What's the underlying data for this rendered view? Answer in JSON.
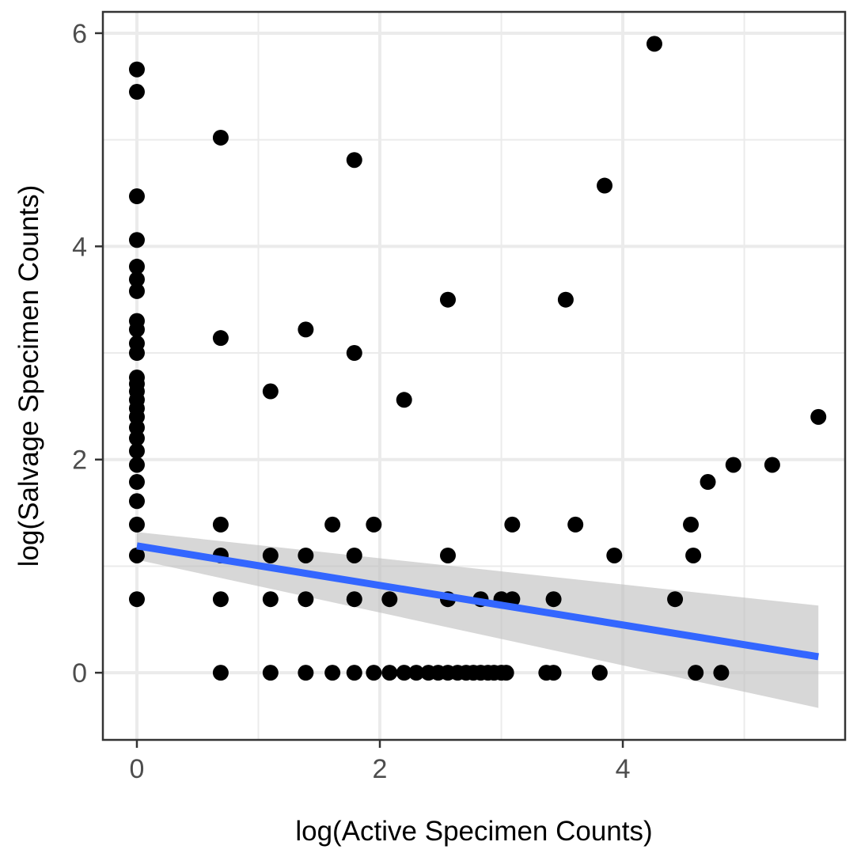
{
  "chart_data": {
    "type": "scatter",
    "title": "",
    "xlabel": "log(Active Specimen Counts)",
    "ylabel": "log(Salvage Specimen Counts)",
    "xlim": [
      -0.28,
      5.83
    ],
    "ylim": [
      -0.63,
      6.2
    ],
    "x_ticks": [
      0,
      2,
      4
    ],
    "x_tick_labels": [
      "0",
      "2",
      "4"
    ],
    "y_ticks": [
      0,
      2,
      4,
      6
    ],
    "y_tick_labels": [
      "0",
      "2",
      "4",
      "6"
    ],
    "grid": true,
    "colors": {
      "points": "#000000",
      "fit_line": "#3366ff",
      "confidence_band": "#bebebe",
      "panel_border": "#333333",
      "grid": "#ebebeb"
    },
    "points": [
      {
        "x": 0,
        "y": 5.66
      },
      {
        "x": 0,
        "y": 5.45
      },
      {
        "x": 0,
        "y": 4.47
      },
      {
        "x": 0,
        "y": 4.06
      },
      {
        "x": 0,
        "y": 3.81
      },
      {
        "x": 0,
        "y": 3.69
      },
      {
        "x": 0,
        "y": 3.58
      },
      {
        "x": 0,
        "y": 3.3
      },
      {
        "x": 0,
        "y": 3.22
      },
      {
        "x": 0,
        "y": 3.09
      },
      {
        "x": 0,
        "y": 3.0
      },
      {
        "x": 0,
        "y": 2.77
      },
      {
        "x": 0,
        "y": 2.71
      },
      {
        "x": 0,
        "y": 2.64
      },
      {
        "x": 0,
        "y": 2.56
      },
      {
        "x": 0,
        "y": 2.48
      },
      {
        "x": 0,
        "y": 2.4
      },
      {
        "x": 0,
        "y": 2.3
      },
      {
        "x": 0,
        "y": 2.2
      },
      {
        "x": 0,
        "y": 2.08
      },
      {
        "x": 0,
        "y": 1.95
      },
      {
        "x": 0,
        "y": 1.79
      },
      {
        "x": 0,
        "y": 1.61
      },
      {
        "x": 0,
        "y": 1.39
      },
      {
        "x": 0,
        "y": 1.1
      },
      {
        "x": 0,
        "y": 0.69
      },
      {
        "x": 0.69,
        "y": 5.02
      },
      {
        "x": 0.69,
        "y": 3.14
      },
      {
        "x": 0.69,
        "y": 1.39
      },
      {
        "x": 0.69,
        "y": 1.1
      },
      {
        "x": 0.69,
        "y": 0.69
      },
      {
        "x": 0.69,
        "y": 0
      },
      {
        "x": 1.1,
        "y": 2.64
      },
      {
        "x": 1.1,
        "y": 1.1
      },
      {
        "x": 1.1,
        "y": 0.69
      },
      {
        "x": 1.1,
        "y": 0
      },
      {
        "x": 1.39,
        "y": 3.22
      },
      {
        "x": 1.39,
        "y": 1.1
      },
      {
        "x": 1.39,
        "y": 0.69
      },
      {
        "x": 1.39,
        "y": 0
      },
      {
        "x": 1.61,
        "y": 1.39
      },
      {
        "x": 1.61,
        "y": 0
      },
      {
        "x": 1.79,
        "y": 4.81
      },
      {
        "x": 1.79,
        "y": 3.0
      },
      {
        "x": 1.79,
        "y": 1.1
      },
      {
        "x": 1.79,
        "y": 0.69
      },
      {
        "x": 1.79,
        "y": 0
      },
      {
        "x": 1.95,
        "y": 1.39
      },
      {
        "x": 1.95,
        "y": 0
      },
      {
        "x": 2.08,
        "y": 0.69
      },
      {
        "x": 2.08,
        "y": 0
      },
      {
        "x": 2.2,
        "y": 2.56
      },
      {
        "x": 2.2,
        "y": 0
      },
      {
        "x": 2.3,
        "y": 0
      },
      {
        "x": 2.4,
        "y": 0
      },
      {
        "x": 2.48,
        "y": 0
      },
      {
        "x": 2.56,
        "y": 3.5
      },
      {
        "x": 2.56,
        "y": 1.1
      },
      {
        "x": 2.56,
        "y": 0.69
      },
      {
        "x": 2.56,
        "y": 0
      },
      {
        "x": 2.64,
        "y": 0
      },
      {
        "x": 2.71,
        "y": 0
      },
      {
        "x": 2.77,
        "y": 0
      },
      {
        "x": 2.83,
        "y": 0.69
      },
      {
        "x": 2.83,
        "y": 0
      },
      {
        "x": 2.89,
        "y": 0
      },
      {
        "x": 2.94,
        "y": 0
      },
      {
        "x": 3.0,
        "y": 0.69
      },
      {
        "x": 3.0,
        "y": 0
      },
      {
        "x": 3.09,
        "y": 1.39
      },
      {
        "x": 3.09,
        "y": 0.69
      },
      {
        "x": 3.04,
        "y": 0
      },
      {
        "x": 3.37,
        "y": 0
      },
      {
        "x": 3.43,
        "y": 0.69
      },
      {
        "x": 3.43,
        "y": 0
      },
      {
        "x": 3.53,
        "y": 3.5
      },
      {
        "x": 3.61,
        "y": 1.39
      },
      {
        "x": 3.81,
        "y": 0
      },
      {
        "x": 3.85,
        "y": 4.57
      },
      {
        "x": 3.93,
        "y": 1.1
      },
      {
        "x": 4.26,
        "y": 5.9
      },
      {
        "x": 4.43,
        "y": 0.69
      },
      {
        "x": 4.56,
        "y": 1.39
      },
      {
        "x": 4.58,
        "y": 1.1
      },
      {
        "x": 4.6,
        "y": 0
      },
      {
        "x": 4.7,
        "y": 1.79
      },
      {
        "x": 4.81,
        "y": 0
      },
      {
        "x": 4.91,
        "y": 1.95
      },
      {
        "x": 5.23,
        "y": 1.95
      },
      {
        "x": 5.61,
        "y": 2.4
      }
    ],
    "fit": {
      "method": "linear",
      "x": [
        0,
        5.61
      ],
      "y": [
        1.19,
        0.15
      ],
      "ci_lower": [
        1.06,
        -0.33
      ],
      "ci_upper": [
        1.32,
        0.63
      ]
    }
  }
}
